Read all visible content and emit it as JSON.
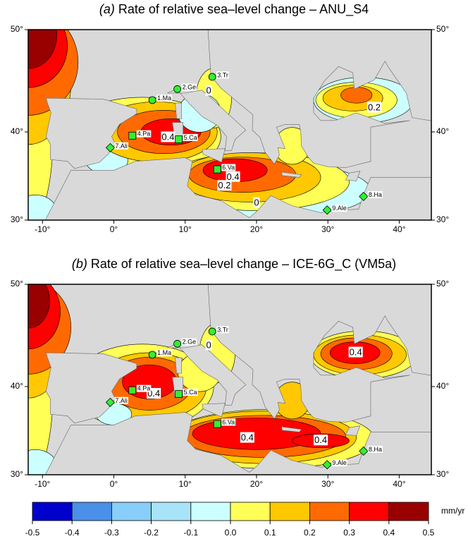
{
  "panels": [
    {
      "label": "(a)",
      "title": "Rate of relative sea–level change – ANU_S4",
      "contour_labels": [
        "0",
        "0.2",
        "0.4",
        "0.4",
        "0.2",
        "0"
      ]
    },
    {
      "label": "(b)",
      "title": "Rate of relative sea–level change – ICE-6G_C (VM5a)",
      "contour_labels": [
        "0.4",
        "0.4",
        "0.4",
        "0.4",
        "0"
      ]
    }
  ],
  "map": {
    "xlim": [
      -12,
      44.5
    ],
    "ylim": [
      30,
      50
    ],
    "xticks": [
      {
        "value": -10,
        "label": "-10°"
      },
      {
        "value": 0,
        "label": "0°"
      },
      {
        "value": 10,
        "label": "10°"
      },
      {
        "value": 20,
        "label": "20°"
      },
      {
        "value": 30,
        "label": "30°"
      },
      {
        "value": 40,
        "label": "40°"
      }
    ],
    "yticks": [
      {
        "value": 30,
        "label": "30°"
      },
      {
        "value": 40,
        "label": "40°"
      },
      {
        "value": 50,
        "label": "50°"
      }
    ],
    "land_color": "#d9d9d9",
    "station_color": "#33ee33",
    "station_label_color": "#e0201b"
  },
  "stations": [
    {
      "label": "1.Ma",
      "lon": 5.4,
      "lat": 43.3,
      "shape": "circle"
    },
    {
      "label": "2.Ge",
      "lon": 8.9,
      "lat": 44.4,
      "shape": "circle"
    },
    {
      "label": "3.Tr",
      "lon": 13.8,
      "lat": 45.6,
      "shape": "circle"
    },
    {
      "label": "4.Pa",
      "lon": 2.6,
      "lat": 39.6,
      "shape": "square"
    },
    {
      "label": "5.Ca",
      "lon": 9.1,
      "lat": 39.2,
      "shape": "square"
    },
    {
      "label": "6.Va",
      "lon": 14.5,
      "lat": 35.9,
      "shape": "square"
    },
    {
      "label": "7.Ali",
      "lon": -0.5,
      "lat": 38.3,
      "shape": "diamond"
    },
    {
      "label": "8.Ha",
      "lon": 35,
      "lat": 32.8,
      "shape": "diamond"
    },
    {
      "label": "9.Ale",
      "lon": 29.9,
      "lat": 31.2,
      "shape": "diamond"
    }
  ],
  "colorbar": {
    "ticks": [
      -0.5,
      -0.4,
      -0.3,
      -0.2,
      -0.1,
      {
        "value": 0,
        "label": "0.0"
      },
      0.1,
      0.2,
      0.3,
      0.4,
      0.5
    ],
    "colors": [
      "#0000cc",
      "#4a90e8",
      "#87cefa",
      "#a8e4f8",
      "#ccffff",
      "#ffff55",
      "#ffc800",
      "#ff6a00",
      "#ff0000",
      "#990000"
    ],
    "unit": "mm/yr"
  }
}
